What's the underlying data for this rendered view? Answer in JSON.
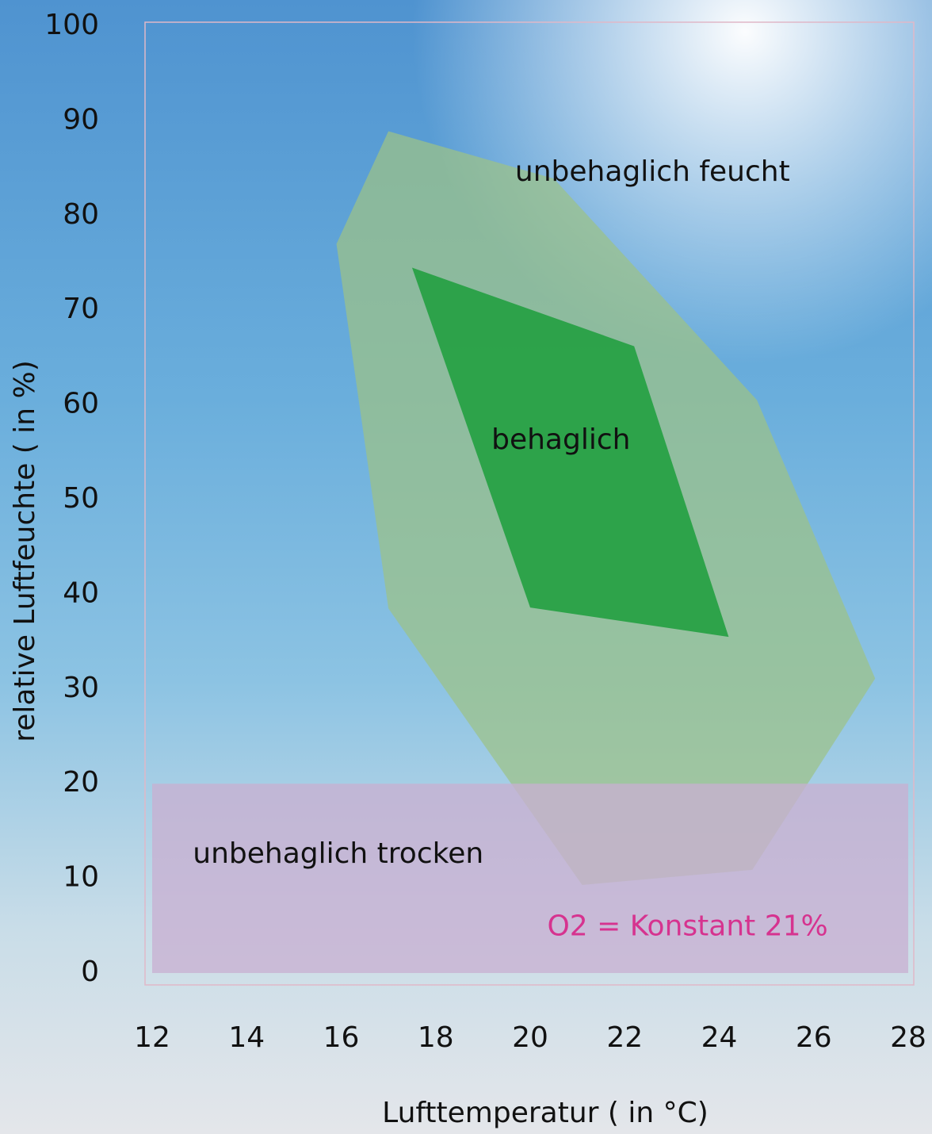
{
  "chart_data": {
    "type": "polygon",
    "xlabel": "Lufttemperatur ( in °C)",
    "ylabel": "relative Luftfeuchte ( in %)",
    "xlim": [
      12,
      28
    ],
    "ylim": [
      0,
      100
    ],
    "xticks": [
      12,
      14,
      16,
      18,
      20,
      22,
      24,
      26,
      28
    ],
    "yticks": [
      0,
      10,
      20,
      30,
      40,
      50,
      60,
      70,
      80,
      90,
      100
    ],
    "grid": false,
    "series": [
      {
        "color": "#9cc286b8",
        "x": [
          17.0,
          20.5,
          24.8,
          27.3,
          24.7,
          21.1,
          17.0,
          15.9
        ],
        "y": [
          88.9,
          83.9,
          60.5,
          31.1,
          10.9,
          9.3,
          38.5,
          77.0
        ]
      },
      {
        "color": "#c8b0d2c4",
        "x": [
          12,
          28,
          28,
          12
        ],
        "y": [
          0,
          0,
          20,
          20
        ]
      },
      {
        "color": "#22a040e6",
        "x": [
          17.5,
          22.2,
          24.2,
          20.0
        ],
        "y": [
          74.5,
          66.2,
          35.5,
          38.6
        ]
      }
    ],
    "annotations": [
      {
        "text": "unbehaglich feucht",
        "x": 19.68,
        "y": 84.5,
        "color": "#111111"
      },
      {
        "text": "behaglich",
        "x": 19.18,
        "y": 56.2,
        "color": "#111111"
      },
      {
        "text": "unbehaglich trocken",
        "x": 12.86,
        "y": 12.5,
        "color": "#111111"
      },
      {
        "text": "O2 = Konstant 21%",
        "x": 20.36,
        "y": 4.8,
        "color": "#d6338f"
      }
    ]
  }
}
